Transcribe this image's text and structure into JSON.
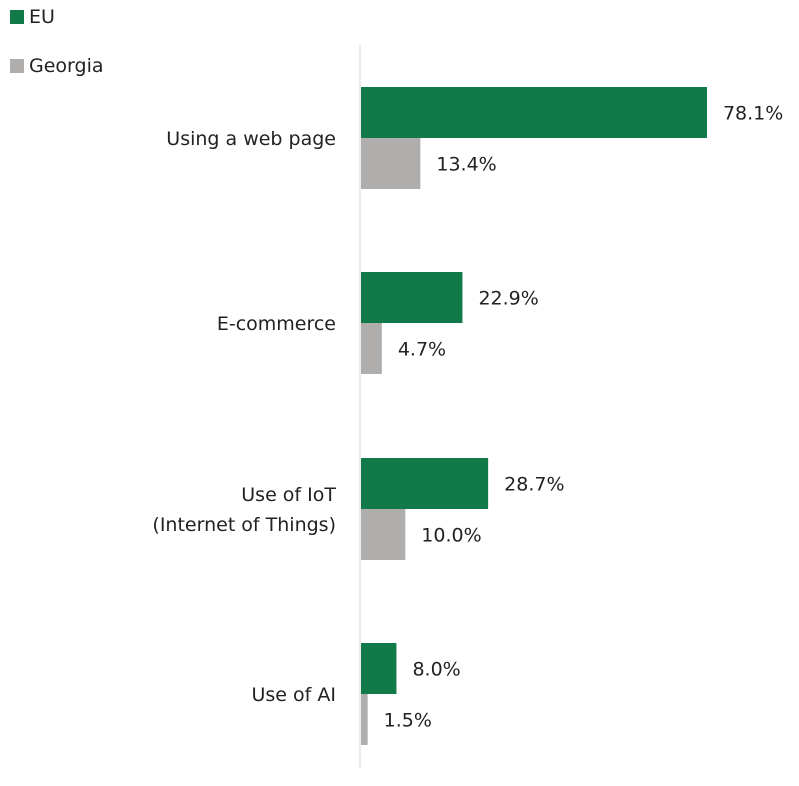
{
  "legend": {
    "items": [
      {
        "label": "EU",
        "color": "#127a48"
      },
      {
        "label": "Georgia",
        "color": "#b0aeac"
      }
    ]
  },
  "chart_data": {
    "type": "bar",
    "orientation": "horizontal",
    "categories": [
      [
        "Using a web page"
      ],
      [
        "E-commerce"
      ],
      [
        "Use of IoT",
        "(Internet of Things)"
      ],
      [
        "Use of AI"
      ]
    ],
    "series": [
      {
        "name": "EU",
        "color": "#127a48",
        "values": [
          78.1,
          22.9,
          28.7,
          8.0
        ],
        "labels": [
          "78.1%",
          "22.9%",
          "28.7%",
          "8.0%"
        ]
      },
      {
        "name": "Georgia",
        "color": "#b0aeac",
        "values": [
          13.4,
          4.7,
          10.0,
          1.5
        ],
        "labels": [
          "13.4%",
          "4.7%",
          "10.0%",
          "1.5%"
        ]
      }
    ],
    "xlim": [
      0,
      100
    ],
    "grid": false,
    "legend_position": "top-left"
  }
}
